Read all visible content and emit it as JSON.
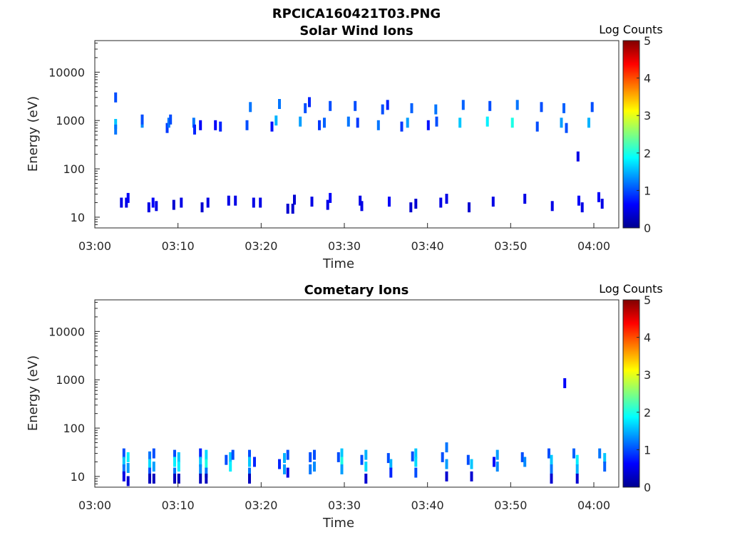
{
  "figure": {
    "title": "RPCICA160421T03.PNG"
  },
  "chart_data": [
    {
      "type": "heatmap",
      "title": "Solar Wind Ions",
      "xlabel": "Time",
      "ylabel": "Energy (eV)",
      "x_ticks": [
        "03:00",
        "03:10",
        "03:20",
        "03:30",
        "03:40",
        "03:50",
        "04:00"
      ],
      "x_range_minutes": [
        0,
        63
      ],
      "y_scale": "log",
      "y_ticks": [
        "10",
        "100",
        "1000",
        "10000"
      ],
      "y_range": [
        6,
        45000
      ],
      "colorbar": {
        "label": "Log Counts",
        "range": [
          0,
          5
        ],
        "ticks": [
          "0",
          "1",
          "2",
          "3",
          "4",
          "5"
        ],
        "colormap": "jet"
      },
      "points": [
        [
          2.5,
          3000,
          1
        ],
        [
          2.5,
          850,
          1.6
        ],
        [
          2.5,
          650,
          1.2
        ],
        [
          3.2,
          20,
          0.5
        ],
        [
          3.8,
          20,
          0.5
        ],
        [
          4.0,
          25,
          0.6
        ],
        [
          5.7,
          900,
          1.3
        ],
        [
          5.7,
          1050,
          1.0
        ],
        [
          6.5,
          16,
          0.5
        ],
        [
          7.0,
          20,
          0.6
        ],
        [
          7.4,
          17,
          0.5
        ],
        [
          8.7,
          700,
          0.9
        ],
        [
          8.9,
          900,
          1.2
        ],
        [
          9.1,
          1050,
          1.0
        ],
        [
          9.5,
          18,
          0.4
        ],
        [
          10.4,
          20,
          0.5
        ],
        [
          11.9,
          900,
          1.2
        ],
        [
          12.0,
          650,
          0.8
        ],
        [
          12.7,
          800,
          0.6
        ],
        [
          12.9,
          16,
          0.4
        ],
        [
          13.6,
          20,
          0.5
        ],
        [
          14.5,
          800,
          0.6
        ],
        [
          15.1,
          750,
          0.8
        ],
        [
          16.1,
          22,
          0.5
        ],
        [
          16.9,
          22,
          0.5
        ],
        [
          18.3,
          800,
          1.0
        ],
        [
          18.7,
          1900,
          1.2
        ],
        [
          19.1,
          20,
          0.5
        ],
        [
          19.9,
          20,
          0.5
        ],
        [
          21.3,
          750,
          0.7
        ],
        [
          21.8,
          1000,
          1.5
        ],
        [
          22.2,
          2200,
          1.2
        ],
        [
          23.2,
          15,
          0.4
        ],
        [
          23.8,
          15,
          0.4
        ],
        [
          24.0,
          23,
          0.4
        ],
        [
          24.7,
          950,
          1.4
        ],
        [
          25.3,
          1800,
          1.0
        ],
        [
          25.8,
          2400,
          0.8
        ],
        [
          26.1,
          21,
          0.5
        ],
        [
          27.0,
          800,
          0.9
        ],
        [
          27.6,
          900,
          1.1
        ],
        [
          28.3,
          2000,
          1.0
        ],
        [
          28.0,
          18,
          0.5
        ],
        [
          28.3,
          25,
          0.6
        ],
        [
          30.5,
          950,
          1.2
        ],
        [
          31.3,
          2000,
          1.0
        ],
        [
          31.6,
          900,
          0.9
        ],
        [
          31.9,
          22,
          0.5
        ],
        [
          32.1,
          17,
          0.5
        ],
        [
          34.1,
          800,
          1.2
        ],
        [
          34.6,
          1700,
          1.0
        ],
        [
          35.2,
          2100,
          0.8
        ],
        [
          35.4,
          21,
          0.6
        ],
        [
          36.9,
          750,
          0.9
        ],
        [
          37.6,
          900,
          1.4
        ],
        [
          38.1,
          1800,
          1.1
        ],
        [
          38.0,
          16,
          0.4
        ],
        [
          38.6,
          19,
          0.4
        ],
        [
          40.1,
          800,
          0.7
        ],
        [
          41.0,
          1700,
          1.2
        ],
        [
          41.1,
          950,
          1.0
        ],
        [
          41.6,
          20,
          0.5
        ],
        [
          42.3,
          24,
          0.5
        ],
        [
          43.9,
          900,
          1.6
        ],
        [
          44.3,
          2100,
          1.1
        ],
        [
          45.0,
          16,
          0.4
        ],
        [
          47.2,
          950,
          1.8
        ],
        [
          47.5,
          2000,
          1.0
        ],
        [
          47.9,
          21,
          0.5
        ],
        [
          50.2,
          900,
          2.0
        ],
        [
          50.8,
          2100,
          1.2
        ],
        [
          51.7,
          24,
          0.5
        ],
        [
          53.2,
          750,
          1.0
        ],
        [
          53.7,
          1900,
          1.0
        ],
        [
          55.0,
          17,
          0.5
        ],
        [
          56.1,
          900,
          1.4
        ],
        [
          56.4,
          1800,
          1.1
        ],
        [
          56.7,
          700,
          1.0
        ],
        [
          58.1,
          180,
          0.5
        ],
        [
          58.2,
          22,
          0.6
        ],
        [
          58.6,
          16,
          0.5
        ],
        [
          59.4,
          900,
          1.5
        ],
        [
          59.8,
          1900,
          1.0
        ],
        [
          60.6,
          26,
          0.6
        ],
        [
          61.0,
          19,
          0.5
        ]
      ]
    },
    {
      "type": "heatmap",
      "title": "Cometary Ions",
      "xlabel": "Time",
      "ylabel": "Energy (eV)",
      "x_ticks": [
        "03:00",
        "03:10",
        "03:20",
        "03:30",
        "03:40",
        "03:50",
        "04:00"
      ],
      "x_range_minutes": [
        0,
        63
      ],
      "y_scale": "log",
      "y_ticks": [
        "10",
        "100",
        "1000",
        "10000"
      ],
      "y_range": [
        6,
        45000
      ],
      "colorbar": {
        "label": "Log Counts",
        "range": [
          0,
          5
        ],
        "ticks": [
          "0",
          "1",
          "2",
          "3",
          "4",
          "5"
        ],
        "colormap": "jet"
      },
      "points": [
        [
          56.5,
          850,
          0.6
        ],
        [
          3.5,
          30,
          1.0
        ],
        [
          3.5,
          20,
          1.6
        ],
        [
          3.5,
          14,
          1.2
        ],
        [
          3.5,
          10,
          0.5
        ],
        [
          4.0,
          25,
          1.8
        ],
        [
          4.0,
          15,
          1.4
        ],
        [
          4.0,
          8,
          0.4
        ],
        [
          6.6,
          26,
          1.2
        ],
        [
          6.6,
          18,
          1.7
        ],
        [
          6.6,
          12,
          1.0
        ],
        [
          6.6,
          9,
          0.3
        ],
        [
          7.1,
          30,
          1.0
        ],
        [
          7.1,
          16,
          1.4
        ],
        [
          7.1,
          9,
          0.3
        ],
        [
          9.6,
          28,
          1.0
        ],
        [
          9.6,
          20,
          1.8
        ],
        [
          9.6,
          12,
          1.2
        ],
        [
          9.6,
          9,
          0.3
        ],
        [
          10.1,
          25,
          1.6
        ],
        [
          10.1,
          16,
          1.8
        ],
        [
          10.1,
          9,
          0.3
        ],
        [
          12.7,
          30,
          0.8
        ],
        [
          12.7,
          20,
          1.6
        ],
        [
          12.7,
          14,
          1.3
        ],
        [
          12.7,
          9,
          0.3
        ],
        [
          13.4,
          28,
          1.7
        ],
        [
          13.4,
          18,
          2.0
        ],
        [
          13.4,
          12,
          1.2
        ],
        [
          13.4,
          9,
          0.3
        ],
        [
          15.8,
          22,
          1.0
        ],
        [
          16.3,
          25,
          1.6
        ],
        [
          16.3,
          16,
          1.8
        ],
        [
          16.6,
          28,
          1.0
        ],
        [
          18.6,
          28,
          1.0
        ],
        [
          18.6,
          20,
          1.6
        ],
        [
          18.6,
          12,
          1.2
        ],
        [
          18.6,
          9,
          0.3
        ],
        [
          19.2,
          20,
          0.8
        ],
        [
          22.2,
          18,
          0.8
        ],
        [
          22.8,
          24,
          1.5
        ],
        [
          22.8,
          14,
          1.4
        ],
        [
          23.2,
          28,
          1.0
        ],
        [
          23.2,
          12,
          0.5
        ],
        [
          25.9,
          25,
          1.0
        ],
        [
          25.9,
          14,
          1.2
        ],
        [
          26.4,
          28,
          1.0
        ],
        [
          26.4,
          16,
          1.3
        ],
        [
          29.3,
          25,
          1.0
        ],
        [
          29.7,
          30,
          1.6
        ],
        [
          29.7,
          20,
          2.0
        ],
        [
          29.7,
          14,
          1.4
        ],
        [
          32.1,
          22,
          1.0
        ],
        [
          32.6,
          28,
          1.5
        ],
        [
          32.6,
          16,
          1.7
        ],
        [
          32.6,
          9,
          0.4
        ],
        [
          35.3,
          24,
          1.0
        ],
        [
          35.6,
          18,
          1.5
        ],
        [
          35.6,
          12,
          0.8
        ],
        [
          38.2,
          26,
          1.0
        ],
        [
          38.6,
          30,
          1.6
        ],
        [
          38.6,
          20,
          1.7
        ],
        [
          38.6,
          12,
          1.0
        ],
        [
          41.8,
          25,
          1.0
        ],
        [
          42.3,
          40,
          1.2
        ],
        [
          42.3,
          18,
          1.4
        ],
        [
          42.3,
          10,
          0.4
        ],
        [
          44.9,
          22,
          1.0
        ],
        [
          45.3,
          18,
          1.6
        ],
        [
          45.3,
          10,
          0.4
        ],
        [
          48.0,
          20,
          0.6
        ],
        [
          48.4,
          28,
          1.4
        ],
        [
          48.4,
          16,
          1.3
        ],
        [
          51.4,
          25,
          1.0
        ],
        [
          51.7,
          20,
          1.3
        ],
        [
          54.6,
          30,
          1.0
        ],
        [
          54.9,
          22,
          1.6
        ],
        [
          54.9,
          14,
          1.2
        ],
        [
          54.9,
          9,
          0.4
        ],
        [
          57.6,
          30,
          1.1
        ],
        [
          58.0,
          22,
          1.8
        ],
        [
          58.0,
          14,
          1.5
        ],
        [
          58.0,
          9,
          0.4
        ],
        [
          60.7,
          30,
          1.2
        ],
        [
          61.3,
          24,
          1.6
        ],
        [
          61.3,
          16,
          1.1
        ]
      ]
    }
  ]
}
